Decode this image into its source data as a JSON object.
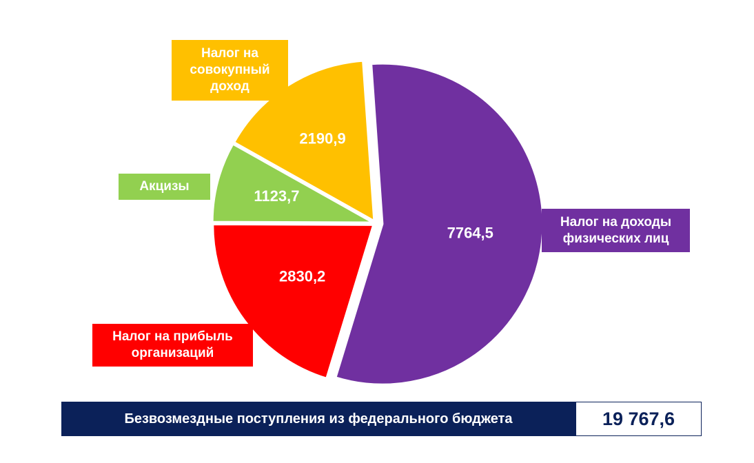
{
  "chart_data": {
    "type": "pie",
    "slices": [
      {
        "label": "Налог на доходы физических лиц",
        "label_lines": [
          "Налог на доходы",
          "физических лиц"
        ],
        "value": 7764.5,
        "value_label": "7764,5",
        "color": "#7030a0"
      },
      {
        "label": "Налог на прибыль организаций",
        "label_lines": [
          "Налог на прибыль",
          "организаций"
        ],
        "value": 2830.2,
        "value_label": "2830,2",
        "color": "#ff0000"
      },
      {
        "label": "Акцизы",
        "label_lines": [
          "Акцизы"
        ],
        "value": 1123.7,
        "value_label": "1123,7",
        "color": "#92d050"
      },
      {
        "label": "Налог на совокупный доход",
        "label_lines": [
          "Налог на",
          "совокупный",
          "доход"
        ],
        "value": 2190.9,
        "value_label": "2190,9",
        "color": "#ffc000"
      }
    ]
  },
  "footer": {
    "label": "Безвозмездные поступления из федерального бюджета",
    "value": "19 767,6"
  },
  "colors": {
    "footer_bg": "#0b2159"
  }
}
